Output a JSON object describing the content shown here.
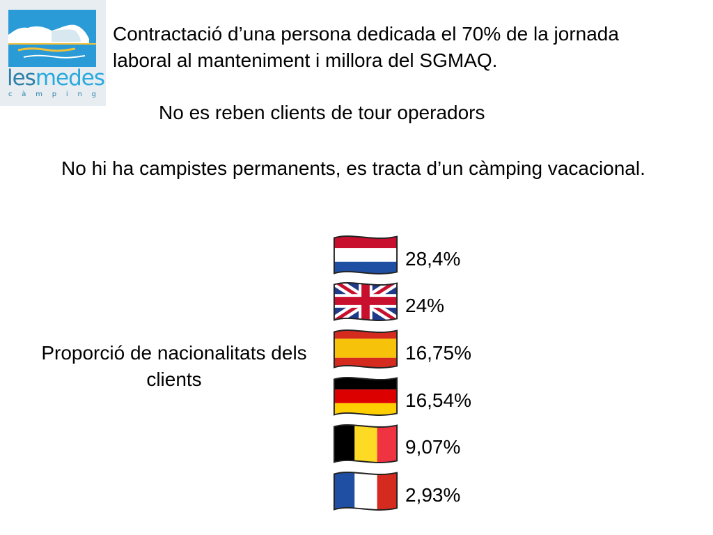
{
  "logo": {
    "word_part1": "les",
    "word_part2": "medes",
    "subtitle_letters": [
      "c",
      "à",
      "m",
      "p",
      "i",
      "n",
      "g"
    ],
    "colors": {
      "background": "#e7edf1",
      "sea": "#2a9bd6",
      "dark": "#2d7fa7",
      "yellow": "#f2c13a"
    }
  },
  "text": {
    "line1": "Contractació d’una persona dedicada el 70% de la jornada laboral al manteniment i millora del SGMAQ.",
    "line2": "No es reben clients de tour operadors",
    "line3": "No hi ha campistes permanents, es tracta d’un càmping vacacional."
  },
  "nationalities": {
    "caption": "Proporció de nacionalitats dels clients",
    "rows": [
      {
        "flag": "netherlands-flag-icon",
        "percent": "28,4%"
      },
      {
        "flag": "uk-flag-icon",
        "percent": "24%"
      },
      {
        "flag": "spain-flag-icon",
        "percent": "16,75%"
      },
      {
        "flag": "germany-flag-icon",
        "percent": "16,54%"
      },
      {
        "flag": "belgium-flag-icon",
        "percent": "9,07%"
      },
      {
        "flag": "france-flag-icon",
        "percent": "2,93%"
      }
    ]
  }
}
